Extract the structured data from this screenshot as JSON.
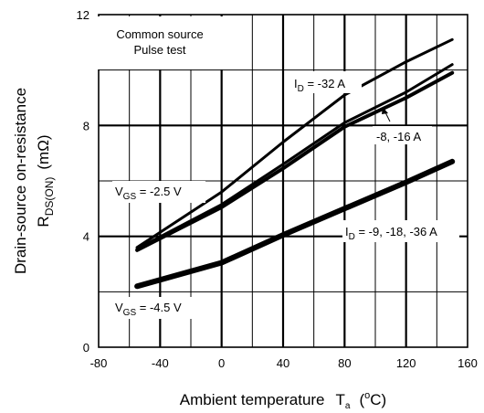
{
  "chart_data": {
    "type": "line",
    "xlabel": {
      "main": "Ambient temperature",
      "symbol": "T",
      "sub": "a",
      "unit_open": "(",
      "unit_sup": "o",
      "unit_rest": "C)"
    },
    "ylabel": {
      "line1": "Drain-source on-resistance",
      "symbol": "R",
      "sub": "DS(ON)",
      "unit": "(mΩ)"
    },
    "xlim": [
      -80,
      160
    ],
    "ylim": [
      0,
      12
    ],
    "xticks": [
      "-80",
      "-40",
      "0",
      "40",
      "80",
      "120",
      "160"
    ],
    "yticks": [
      "0",
      "4",
      "8",
      "12"
    ],
    "grid": true,
    "conditions": [
      "Common source",
      "Pulse test"
    ],
    "series": [
      {
        "points": [
          [
            -55,
            3.6
          ],
          [
            0,
            5.6
          ],
          [
            40,
            7.4
          ],
          [
            80,
            9.1
          ],
          [
            120,
            10.3
          ],
          [
            150,
            11.1
          ]
        ],
        "stroke": 3
      },
      {
        "points": [
          [
            -55,
            3.55
          ],
          [
            0,
            5.15
          ],
          [
            40,
            6.6
          ],
          [
            80,
            8.1
          ],
          [
            120,
            9.2
          ],
          [
            150,
            10.2
          ]
        ],
        "stroke": 3
      },
      {
        "points": [
          [
            -55,
            3.5
          ],
          [
            0,
            5.05
          ],
          [
            40,
            6.45
          ],
          [
            80,
            7.95
          ],
          [
            120,
            9.0
          ],
          [
            150,
            9.9
          ]
        ],
        "stroke": 4
      },
      {
        "points": [
          [
            -55,
            2.2
          ],
          [
            0,
            3.05
          ],
          [
            40,
            4.05
          ],
          [
            80,
            5.0
          ],
          [
            120,
            5.95
          ],
          [
            150,
            6.7
          ]
        ],
        "stroke": 6
      }
    ],
    "annotations": {
      "id_32": {
        "pre": "I",
        "sub": "D",
        "post": " = -32 A"
      },
      "id_8_16": {
        "text": "-8, -16 A"
      },
      "vgs_25": {
        "pre": "V",
        "sub": "GS",
        "post": " = -2.5 V"
      },
      "id_9": {
        "pre": "I",
        "sub": "D",
        "post": " = -9, -18, -36 A"
      },
      "vgs_45": {
        "pre": "V",
        "sub": "GS",
        "post": " = -4.5 V"
      }
    }
  }
}
